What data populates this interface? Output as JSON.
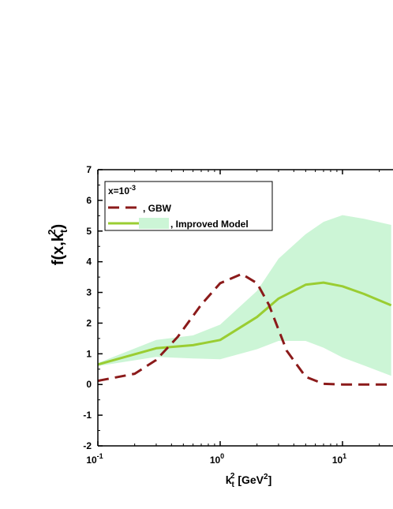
{
  "chart_data": {
    "type": "line",
    "x_scale": "log",
    "xlim": [
      0.1,
      25
    ],
    "ylim": [
      -2,
      7
    ],
    "grid": false,
    "legend_placement": "top-left",
    "xlabel": {
      "main": "k",
      "sub": "t",
      "sup": "2",
      "unit_open": " [GeV",
      "unit_sup": "2",
      "unit_close": "]"
    },
    "ylabel": {
      "main": "f(x,k",
      "sub": "t",
      "sup": "2",
      "close": ")"
    },
    "legend_title": {
      "base": "x=10",
      "exp": "-3"
    },
    "x_tick_labels": [
      {
        "value": 0.1,
        "base": "10",
        "exp": "-1"
      },
      {
        "value": 1,
        "base": "10",
        "exp": "0"
      },
      {
        "value": 10,
        "base": "10",
        "exp": "1"
      }
    ],
    "y_tick_labels": [
      "-2",
      "-1",
      "0",
      "1",
      "2",
      "3",
      "4",
      "5",
      "6",
      "7"
    ],
    "y_ticks": [
      -2,
      -1,
      0,
      1,
      2,
      3,
      4,
      5,
      6,
      7
    ],
    "series": [
      {
        "name": ", GBW",
        "style": "dashed",
        "color": "#8b1a1a",
        "x": [
          0.1,
          0.2,
          0.3,
          0.45,
          0.7,
          1.0,
          1.5,
          2.0,
          2.5,
          3.5,
          5.0,
          7.0,
          10,
          15,
          25
        ],
        "y": [
          0.12,
          0.35,
          0.8,
          1.55,
          2.6,
          3.3,
          3.6,
          3.3,
          2.6,
          1.1,
          0.25,
          0.02,
          0.0,
          0.0,
          0.0
        ]
      },
      {
        "name": ", Improved Model",
        "style": "solid",
        "color": "#9acd32",
        "band_color": "#ccf5d6",
        "x": [
          0.1,
          0.3,
          0.6,
          1.0,
          2.0,
          3.0,
          5.0,
          7.0,
          10,
          15,
          25
        ],
        "y": [
          0.65,
          1.18,
          1.28,
          1.45,
          2.2,
          2.8,
          3.25,
          3.32,
          3.2,
          2.95,
          2.58
        ],
        "y_low": [
          0.6,
          0.9,
          0.85,
          0.82,
          1.15,
          1.42,
          1.42,
          1.2,
          0.88,
          0.62,
          0.28
        ],
        "y_high": [
          0.7,
          1.45,
          1.6,
          1.95,
          3.05,
          4.1,
          4.9,
          5.3,
          5.52,
          5.4,
          5.2
        ]
      }
    ]
  }
}
